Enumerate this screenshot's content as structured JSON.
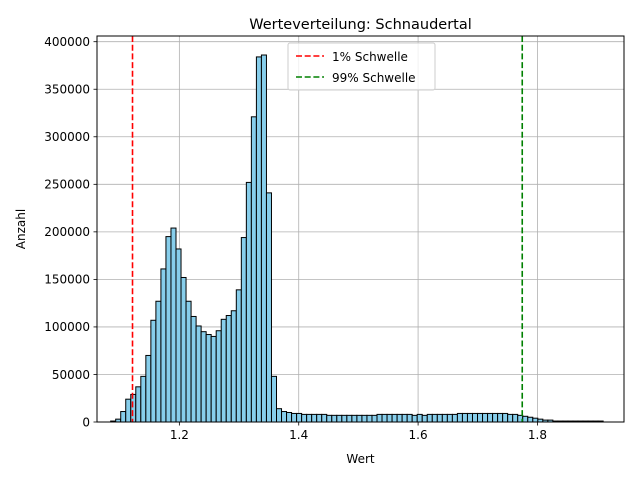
{
  "chart_data": {
    "type": "bar",
    "title": "Werteverteilung: Schnaudertal",
    "xlabel": "Wert",
    "ylabel": "Anzahl",
    "xlim": [
      1.062,
      1.945
    ],
    "ylim": [
      0,
      406000
    ],
    "xticks": [
      1.2,
      1.4,
      1.6,
      1.8
    ],
    "xtick_labels": [
      "1.2",
      "1.4",
      "1.6",
      "1.8"
    ],
    "yticks": [
      0,
      50000,
      100000,
      150000,
      200000,
      250000,
      300000,
      350000,
      400000
    ],
    "ytick_labels": [
      "0",
      "50000",
      "100000",
      "150000",
      "200000",
      "250000",
      "300000",
      "350000",
      "400000"
    ],
    "grid": true,
    "bar_color": "#87ceeb",
    "edge_color": "#000000",
    "bin_start": 1.0849,
    "bin_width": 0.00842,
    "values": [
      1000,
      3000,
      11000,
      24000,
      29000,
      37000,
      48000,
      70000,
      107000,
      127000,
      161000,
      195000,
      204000,
      182000,
      152000,
      127000,
      111000,
      101000,
      95000,
      92000,
      90000,
      96000,
      108000,
      112000,
      117000,
      139000,
      194000,
      252000,
      321000,
      384000,
      386000,
      241000,
      48000,
      14000,
      11000,
      10000,
      9000,
      9000,
      8000,
      8000,
      8000,
      8000,
      8000,
      7000,
      7000,
      7000,
      7000,
      7000,
      7000,
      7000,
      7000,
      7000,
      7000,
      8000,
      8000,
      8000,
      8000,
      8000,
      8000,
      8000,
      7000,
      8000,
      7000,
      8000,
      8000,
      8000,
      8000,
      8000,
      8000,
      9000,
      9000,
      9000,
      9000,
      9000,
      9000,
      9000,
      9000,
      9000,
      9000,
      8000,
      8000,
      7000,
      6000,
      5000,
      4000,
      3000,
      2000,
      2000,
      1000,
      1000,
      1000,
      1000,
      1000,
      1000,
      1000,
      1000,
      1000,
      1000
    ],
    "thresholds": [
      {
        "name": "1% Schwelle",
        "x": 1.1215,
        "color": "#ff0000"
      },
      {
        "name": "99% Schwelle",
        "x": 1.7745,
        "color": "#008000"
      }
    ],
    "legend": "upper center"
  }
}
